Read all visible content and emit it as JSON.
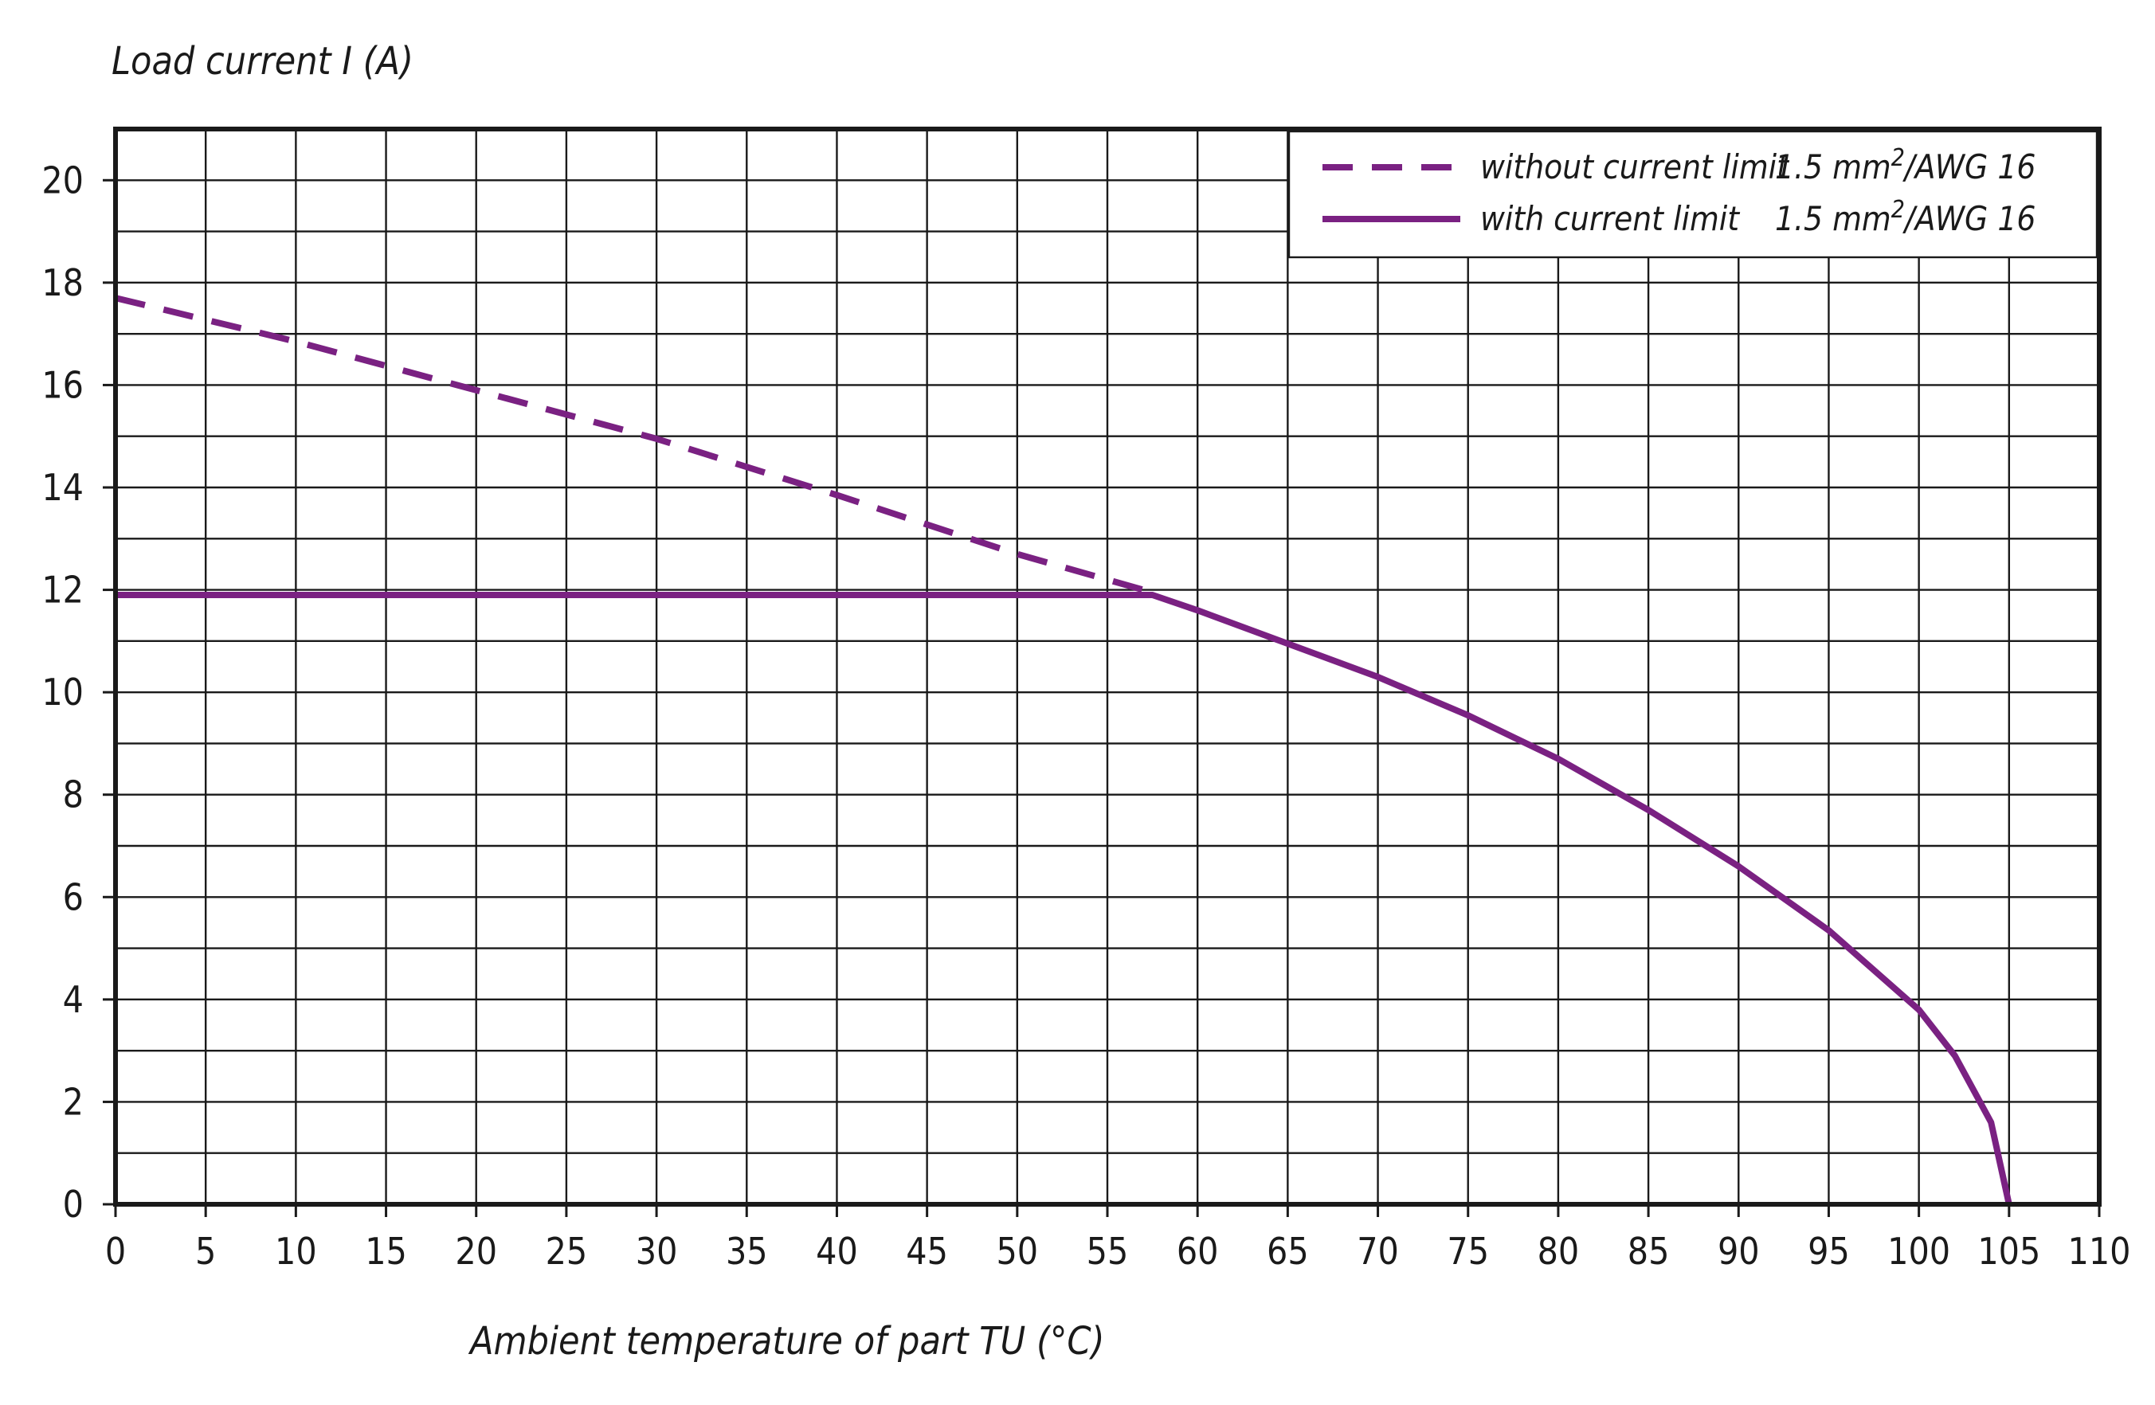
{
  "chart_data": {
    "type": "line",
    "title": "",
    "ylabel": "Load current I (A)",
    "xlabel": "Ambient temperature of part TU (°C)",
    "xlim": [
      0,
      110
    ],
    "ylim": [
      0,
      21
    ],
    "xticks": [
      "0",
      "5",
      "10",
      "15",
      "20",
      "25",
      "30",
      "35",
      "40",
      "45",
      "50",
      "55",
      "60",
      "65",
      "70",
      "75",
      "80",
      "85",
      "90",
      "95",
      "100",
      "105",
      "110"
    ],
    "yticks": [
      "0",
      "2",
      "4",
      "6",
      "8",
      "10",
      "12",
      "14",
      "16",
      "18",
      "20"
    ],
    "grid": true,
    "legend_position": "top-right",
    "legend": [
      {
        "label": "without current limit",
        "spec_base": "1.5 mm",
        "spec_sup": "2",
        "spec_tail": "/AWG 16",
        "style": "dashed"
      },
      {
        "label": "with current limit",
        "spec_base": "1.5 mm",
        "spec_sup": "2",
        "spec_tail": "/AWG 16",
        "style": "solid"
      }
    ],
    "series": [
      {
        "style": "dashed",
        "x": [
          0,
          10,
          20,
          30,
          40,
          50,
          57.5
        ],
        "y": [
          17.7,
          16.85,
          15.9,
          14.95,
          13.85,
          12.7,
          11.95
        ]
      },
      {
        "style": "solid",
        "x": [
          0,
          57.5,
          60,
          65,
          70,
          75,
          80,
          85,
          90,
          95,
          100,
          102,
          104,
          105
        ],
        "y": [
          11.9,
          11.9,
          11.6,
          10.95,
          10.3,
          9.55,
          8.7,
          7.7,
          6.6,
          5.35,
          3.8,
          2.9,
          1.6,
          0
        ]
      }
    ]
  },
  "colors": {
    "series": "#7a2182",
    "grid": "#1a1a1a",
    "background": "#ffffff"
  }
}
